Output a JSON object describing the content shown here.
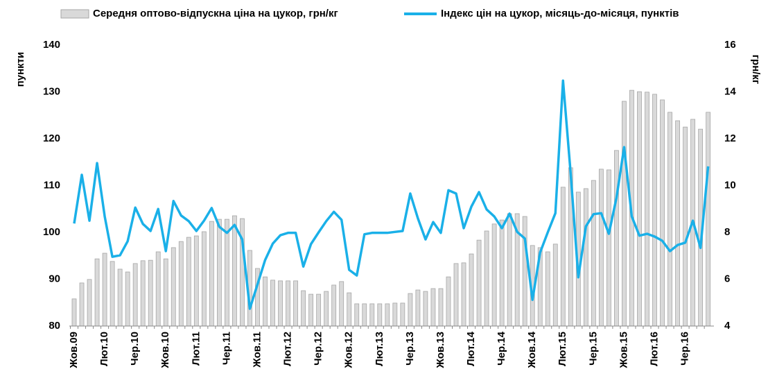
{
  "chart_data": {
    "type": "combo",
    "y_label": "пункти",
    "y2_label": "грн/кг",
    "categories": [
      "Жов.09",
      null,
      null,
      null,
      "Лют.10",
      null,
      null,
      null,
      "Чер.10",
      null,
      null,
      null,
      "Жов.10",
      null,
      null,
      null,
      "Лют.11",
      null,
      null,
      null,
      "Чер.11",
      null,
      null,
      null,
      "Жов.11",
      null,
      null,
      null,
      "Лют.12",
      null,
      null,
      null,
      "Чер.12",
      null,
      null,
      null,
      "Жов.12",
      null,
      null,
      null,
      "Лют.13",
      null,
      null,
      null,
      "Чер.13",
      null,
      null,
      null,
      "Жов.13",
      null,
      null,
      null,
      "Лют.14",
      null,
      null,
      null,
      "Чер.14",
      null,
      null,
      null,
      "Жов.14",
      null,
      null,
      null,
      "Лют.15",
      null,
      null,
      null,
      "Чер.15",
      null,
      null,
      null,
      "Жов.15",
      null,
      null,
      null,
      "Лют.16",
      null,
      null,
      null,
      "Чер.16",
      null,
      null,
      null
    ],
    "series": [
      {
        "name": "Середня оптово-відпускна ціна на цукор, грн/кг",
        "type": "bar",
        "axis": "y2",
        "color": "#d9d9d9",
        "values": [
          5.16,
          5.84,
          5.99,
          6.87,
          7.11,
          6.76,
          6.43,
          6.31,
          6.67,
          6.79,
          6.81,
          7.17,
          6.87,
          7.35,
          7.61,
          7.79,
          7.85,
          8.03,
          8.47,
          8.56,
          8.56,
          8.71,
          8.59,
          7.23,
          6.46,
          6.1,
          5.96,
          5.93,
          5.93,
          5.93,
          5.51,
          5.36,
          5.36,
          5.48,
          5.75,
          5.9,
          5.42,
          4.95,
          4.95,
          4.95,
          4.95,
          4.95,
          4.98,
          4.98,
          5.39,
          5.54,
          5.48,
          5.6,
          5.6,
          6.1,
          6.67,
          6.7,
          7.08,
          7.67,
          8.06,
          8.36,
          8.53,
          8.8,
          8.8,
          8.68,
          7.44,
          7.35,
          7.17,
          7.5,
          9.93,
          10.76,
          9.72,
          9.87,
          10.22,
          10.7,
          10.67,
          11.5,
          13.6,
          14.07,
          14.01,
          13.99,
          13.9,
          13.66,
          13.13,
          12.77,
          12.5,
          12.83,
          12.41,
          13.13
        ]
      },
      {
        "name": "Індекс цін на цукор, місяць-до-місяця, пунктів",
        "type": "line",
        "axis": "y",
        "color": "#1ab0e8",
        "values": [
          101.9,
          112.3,
          102.5,
          114.8,
          103.4,
          94.8,
          95.1,
          98.1,
          105.3,
          101.8,
          100.3,
          105,
          96,
          106.7,
          103.6,
          102.4,
          100.3,
          102.5,
          105.2,
          101.2,
          99.9,
          101.6,
          98.5,
          83.7,
          88.9,
          94.1,
          97.6,
          99.4,
          99.9,
          99.9,
          92.7,
          97.5,
          100,
          102.4,
          104.4,
          102.7,
          92,
          90.8,
          99.6,
          99.9,
          99.9,
          99.9,
          100.1,
          100.3,
          108.3,
          103,
          98.5,
          102.2,
          99.9,
          109,
          108.3,
          100.9,
          105.5,
          108.6,
          104.9,
          103.4,
          100.9,
          104,
          100.1,
          98.7,
          85.6,
          95.7,
          100,
          104.1,
          132.4,
          112.6,
          90.4,
          101.3,
          103.9,
          104.1,
          99.7,
          107.4,
          118.2,
          103.4,
          99.3,
          99.7,
          99.1,
          98.2,
          96,
          97.3,
          97.8,
          102.5,
          96.7,
          114.1
        ]
      }
    ],
    "ylim": [
      80,
      140
    ],
    "yticks": [
      80,
      90,
      100,
      110,
      120,
      130,
      140
    ],
    "y2lim": [
      4,
      16
    ],
    "y2ticks": [
      4,
      6,
      8,
      10,
      12,
      14,
      16
    ],
    "grid": false
  }
}
